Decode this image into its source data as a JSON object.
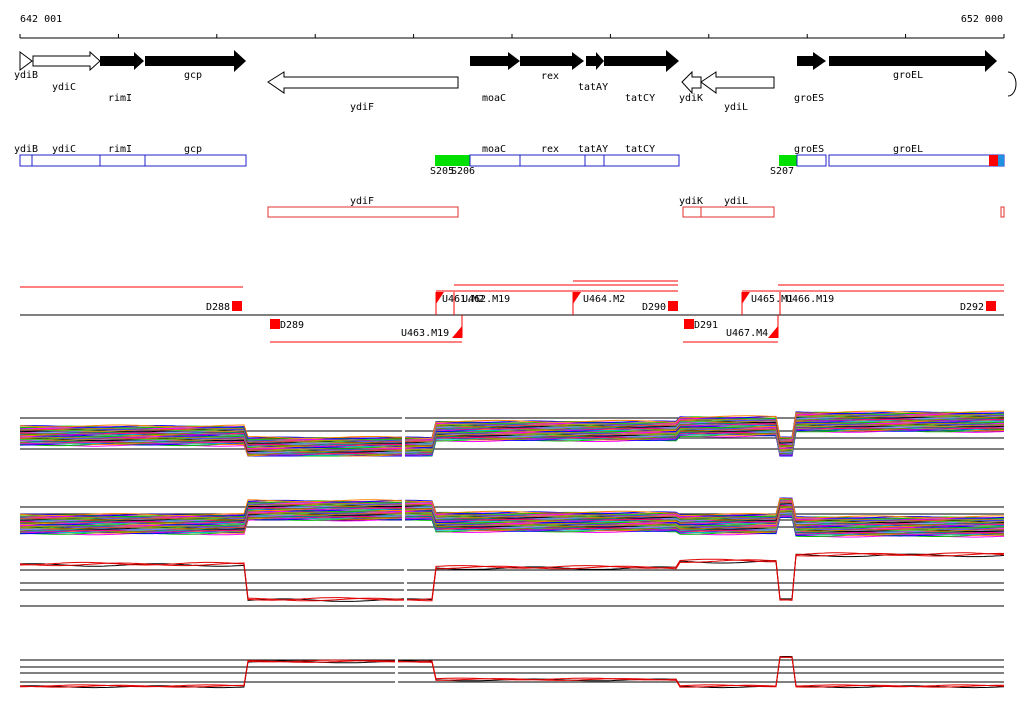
{
  "ruler": {
    "start_label": "642 001",
    "end_label": "652 000"
  },
  "genes_strand": [
    {
      "label": "ydiB",
      "type": "outline-right"
    },
    {
      "label": "ydiC",
      "type": "outline-right"
    },
    {
      "label": "rimI",
      "type": "filled-right"
    },
    {
      "label": "gcp",
      "type": "filled-right"
    },
    {
      "label": "ydiF",
      "type": "outline-left"
    },
    {
      "label": "moaC",
      "type": "filled-right"
    },
    {
      "label": "rex",
      "type": "filled-right"
    },
    {
      "label": "tatAY",
      "type": "filled-right"
    },
    {
      "label": "tatCY",
      "type": "filled-right"
    },
    {
      "label": "ydiK",
      "type": "outline-left"
    },
    {
      "label": "ydiL",
      "type": "outline-left"
    },
    {
      "label": "groES",
      "type": "filled-right"
    },
    {
      "label": "groEL",
      "type": "filled-right"
    }
  ],
  "forward_boxes": [
    "ydiB",
    "ydiC",
    "rimI",
    "gcp",
    "moaC",
    "rex",
    "tatAY",
    "tatCY",
    "groES",
    "groEL"
  ],
  "reverse_boxes": [
    "ydiF",
    "ydiK",
    "ydiL"
  ],
  "promoter_labels": [
    "S205",
    "S206",
    "S207"
  ],
  "segments_top": [
    "D288",
    "U461.M2",
    "U462.M19",
    "U464.M2",
    "D290",
    "U465.M1",
    "U466.M19",
    "D292"
  ],
  "segments_bottom": [
    "D289",
    "U463.M19",
    "D291",
    "U467.M4"
  ],
  "colors": {
    "gene_fill": "#000000",
    "box_outline_forward": "#2020c8",
    "box_outline_reverse": "#e03030",
    "promoter": "#00e000",
    "segment": "#ff0000",
    "trace_highlight": "#e00000",
    "trace_dark": "#000000"
  },
  "profiles": [
    {
      "name": "forward-strand-expression",
      "levels": [
        0.45,
        0.2,
        0.55,
        0.65,
        0.2,
        0.75
      ]
    },
    {
      "name": "reverse-strand-expression",
      "levels": [
        0.35,
        0.65,
        0.4,
        0.35,
        0.7,
        0.3
      ]
    },
    {
      "name": "forward-strand-average",
      "levels": [
        0.75,
        0.2,
        0.7,
        0.8,
        0.2,
        0.9
      ]
    },
    {
      "name": "reverse-strand-average",
      "levels": [
        0.2,
        0.75,
        0.35,
        0.2,
        0.85,
        0.2
      ]
    }
  ]
}
